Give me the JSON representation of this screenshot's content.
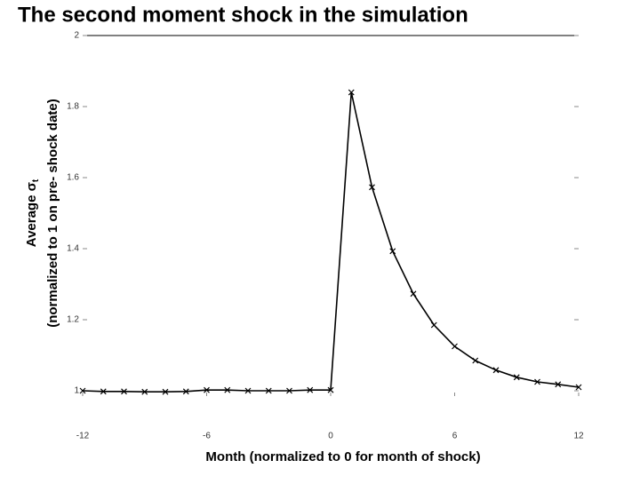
{
  "chart_data": {
    "type": "line",
    "title": "The second moment shock in the simulation",
    "x_label": "Month (normalized to 0 for month of shock)",
    "y_label": {
      "main": "Average σ",
      "subscript": "t",
      "line2": "(normalized to 1 on pre- shock date)"
    },
    "x": [
      -12,
      -11,
      -10,
      -9,
      -8,
      -7,
      -6,
      -5,
      -4,
      -3,
      -2,
      -1,
      0,
      1,
      2,
      3,
      4,
      5,
      6,
      7,
      8,
      9,
      10,
      11,
      12
    ],
    "series": [
      {
        "name": "Average sigma",
        "color": "#000000",
        "marker": "x",
        "values": [
          1.0,
          0.998,
          0.998,
          0.997,
          0.997,
          0.998,
          1.002,
          1.002,
          1.0,
          1.0,
          1.0,
          1.002,
          1.002,
          1.84,
          1.573,
          1.393,
          1.273,
          1.185,
          1.125,
          1.085,
          1.058,
          1.038,
          1.025,
          1.018,
          1.01
        ]
      }
    ],
    "xlim": [
      -12,
      12
    ],
    "xticks": [
      -12,
      -6,
      0,
      6,
      12
    ],
    "ylim": [
      1,
      2
    ],
    "yticks": [
      1,
      1.2,
      1.4,
      1.6,
      1.8,
      2
    ],
    "grid": false
  }
}
